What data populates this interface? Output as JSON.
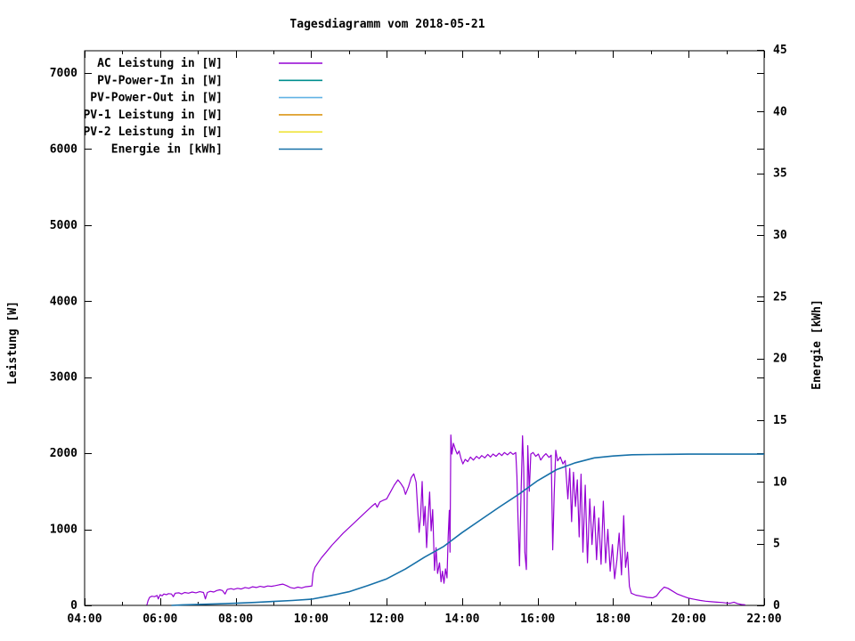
{
  "chart_data": {
    "type": "line",
    "title": "Tagesdiagramm vom 2018-05-21",
    "xlabel": "",
    "ylabel": "Leistung [W]",
    "y2label": "Energie [kWh]",
    "grid": false,
    "legend_position": "top-left-inside",
    "x_axis": {
      "min": 4,
      "max": 22,
      "major_ticks": [
        4,
        6,
        8,
        10,
        12,
        14,
        16,
        18,
        20,
        22
      ],
      "minor_ticks": [
        5,
        7,
        9,
        11,
        13,
        15,
        17,
        19,
        21
      ],
      "major_labels": [
        "04:00",
        "06:00",
        "08:00",
        "10:00",
        "12:00",
        "14:00",
        "16:00",
        "18:00",
        "20:00",
        "22:00"
      ]
    },
    "y_left_axis": {
      "label": "Leistung [W]",
      "min": 0,
      "max": 7300,
      "major_ticks": [
        0,
        1000,
        2000,
        3000,
        4000,
        5000,
        6000,
        7000
      ],
      "major_labels": [
        "0",
        "1000",
        "2000",
        "3000",
        "4000",
        "5000",
        "6000",
        "7000"
      ]
    },
    "y_right_axis": {
      "label": "Energie [kWh]",
      "min": 0,
      "max": 45,
      "major_ticks": [
        0,
        5,
        10,
        15,
        20,
        25,
        30,
        35,
        40,
        45
      ],
      "major_labels": [
        "0",
        "5",
        "10",
        "15",
        "20",
        "25",
        "30",
        "35",
        "40",
        "45"
      ]
    },
    "series": [
      {
        "name": "AC Leistung in [W]",
        "color": "#9400d3",
        "axis": "left",
        "points": [
          [
            5.65,
            5
          ],
          [
            5.68,
            60
          ],
          [
            5.72,
            105
          ],
          [
            5.78,
            120
          ],
          [
            5.85,
            115
          ],
          [
            5.92,
            130
          ],
          [
            5.95,
            85
          ],
          [
            6.0,
            140
          ],
          [
            6.05,
            125
          ],
          [
            6.1,
            150
          ],
          [
            6.17,
            140
          ],
          [
            6.22,
            155
          ],
          [
            6.3,
            150
          ],
          [
            6.35,
            115
          ],
          [
            6.4,
            160
          ],
          [
            6.5,
            165
          ],
          [
            6.57,
            150
          ],
          [
            6.65,
            170
          ],
          [
            6.75,
            160
          ],
          [
            6.85,
            175
          ],
          [
            6.95,
            165
          ],
          [
            7.05,
            180
          ],
          [
            7.15,
            170
          ],
          [
            7.2,
            85
          ],
          [
            7.25,
            170
          ],
          [
            7.33,
            185
          ],
          [
            7.42,
            175
          ],
          [
            7.5,
            195
          ],
          [
            7.58,
            205
          ],
          [
            7.65,
            195
          ],
          [
            7.72,
            150
          ],
          [
            7.78,
            210
          ],
          [
            7.88,
            220
          ],
          [
            7.95,
            210
          ],
          [
            8.05,
            225
          ],
          [
            8.15,
            215
          ],
          [
            8.25,
            235
          ],
          [
            8.35,
            225
          ],
          [
            8.45,
            245
          ],
          [
            8.55,
            235
          ],
          [
            8.65,
            250
          ],
          [
            8.75,
            240
          ],
          [
            8.85,
            255
          ],
          [
            8.95,
            250
          ],
          [
            9.05,
            260
          ],
          [
            9.15,
            270
          ],
          [
            9.25,
            280
          ],
          [
            9.35,
            260
          ],
          [
            9.45,
            235
          ],
          [
            9.55,
            225
          ],
          [
            9.65,
            240
          ],
          [
            9.75,
            230
          ],
          [
            9.85,
            245
          ],
          [
            9.95,
            250
          ],
          [
            10.02,
            255
          ],
          [
            10.05,
            420
          ],
          [
            10.1,
            500
          ],
          [
            10.18,
            560
          ],
          [
            10.28,
            630
          ],
          [
            10.4,
            700
          ],
          [
            10.55,
            790
          ],
          [
            10.7,
            870
          ],
          [
            10.85,
            950
          ],
          [
            11.0,
            1020
          ],
          [
            11.15,
            1090
          ],
          [
            11.3,
            1160
          ],
          [
            11.45,
            1230
          ],
          [
            11.6,
            1300
          ],
          [
            11.7,
            1340
          ],
          [
            11.75,
            1290
          ],
          [
            11.82,
            1360
          ],
          [
            11.9,
            1380
          ],
          [
            12.0,
            1400
          ],
          [
            12.1,
            1490
          ],
          [
            12.2,
            1580
          ],
          [
            12.3,
            1650
          ],
          [
            12.38,
            1600
          ],
          [
            12.45,
            1545
          ],
          [
            12.5,
            1460
          ],
          [
            12.58,
            1560
          ],
          [
            12.65,
            1680
          ],
          [
            12.72,
            1730
          ],
          [
            12.78,
            1620
          ],
          [
            12.82,
            1280
          ],
          [
            12.86,
            960
          ],
          [
            12.9,
            1180
          ],
          [
            12.94,
            1630
          ],
          [
            12.98,
            1050
          ],
          [
            13.02,
            1300
          ],
          [
            13.06,
            760
          ],
          [
            13.1,
            1150
          ],
          [
            13.14,
            1490
          ],
          [
            13.18,
            980
          ],
          [
            13.22,
            1260
          ],
          [
            13.27,
            460
          ],
          [
            13.31,
            760
          ],
          [
            13.35,
            420
          ],
          [
            13.4,
            560
          ],
          [
            13.44,
            310
          ],
          [
            13.48,
            450
          ],
          [
            13.52,
            290
          ],
          [
            13.56,
            480
          ],
          [
            13.6,
            360
          ],
          [
            13.63,
            900
          ],
          [
            13.66,
            1250
          ],
          [
            13.68,
            700
          ],
          [
            13.7,
            2240
          ],
          [
            13.73,
            1990
          ],
          [
            13.77,
            2130
          ],
          [
            13.82,
            2050
          ],
          [
            13.87,
            1990
          ],
          [
            13.92,
            2030
          ],
          [
            13.97,
            1930
          ],
          [
            14.02,
            1860
          ],
          [
            14.08,
            1920
          ],
          [
            14.15,
            1890
          ],
          [
            14.22,
            1950
          ],
          [
            14.3,
            1910
          ],
          [
            14.38,
            1960
          ],
          [
            14.45,
            1930
          ],
          [
            14.52,
            1970
          ],
          [
            14.6,
            1940
          ],
          [
            14.68,
            1985
          ],
          [
            14.75,
            1950
          ],
          [
            14.82,
            1990
          ],
          [
            14.9,
            1960
          ],
          [
            14.98,
            2000
          ],
          [
            15.05,
            1970
          ],
          [
            15.12,
            2010
          ],
          [
            15.2,
            1980
          ],
          [
            15.28,
            2015
          ],
          [
            15.35,
            1985
          ],
          [
            15.42,
            2010
          ],
          [
            15.45,
            1700
          ],
          [
            15.48,
            1150
          ],
          [
            15.52,
            520
          ],
          [
            15.56,
            1450
          ],
          [
            15.6,
            2230
          ],
          [
            15.63,
            1820
          ],
          [
            15.66,
            700
          ],
          [
            15.7,
            470
          ],
          [
            15.74,
            2100
          ],
          [
            15.78,
            1500
          ],
          [
            15.82,
            1990
          ],
          [
            15.88,
            2010
          ],
          [
            15.95,
            1960
          ],
          [
            16.02,
            1990
          ],
          [
            16.08,
            1910
          ],
          [
            16.15,
            1960
          ],
          [
            16.22,
            1995
          ],
          [
            16.3,
            1945
          ],
          [
            16.36,
            1975
          ],
          [
            16.4,
            730
          ],
          [
            16.44,
            1480
          ],
          [
            16.48,
            2040
          ],
          [
            16.53,
            1900
          ],
          [
            16.6,
            1950
          ],
          [
            16.67,
            1860
          ],
          [
            16.73,
            1905
          ],
          [
            16.8,
            1400
          ],
          [
            16.85,
            1800
          ],
          [
            16.9,
            1100
          ],
          [
            16.95,
            1750
          ],
          [
            17.0,
            1300
          ],
          [
            17.05,
            1650
          ],
          [
            17.1,
            900
          ],
          [
            17.15,
            1725
          ],
          [
            17.2,
            700
          ],
          [
            17.26,
            1580
          ],
          [
            17.32,
            560
          ],
          [
            17.38,
            1400
          ],
          [
            17.44,
            800
          ],
          [
            17.5,
            1300
          ],
          [
            17.56,
            600
          ],
          [
            17.62,
            1150
          ],
          [
            17.68,
            540
          ],
          [
            17.74,
            1370
          ],
          [
            17.8,
            560
          ],
          [
            17.86,
            1000
          ],
          [
            17.92,
            450
          ],
          [
            17.98,
            800
          ],
          [
            18.04,
            350
          ],
          [
            18.1,
            600
          ],
          [
            18.16,
            950
          ],
          [
            18.22,
            400
          ],
          [
            18.28,
            1180
          ],
          [
            18.33,
            500
          ],
          [
            18.38,
            700
          ],
          [
            18.43,
            250
          ],
          [
            18.48,
            160
          ],
          [
            18.6,
            135
          ],
          [
            18.75,
            120
          ],
          [
            18.9,
            105
          ],
          [
            19.05,
            100
          ],
          [
            19.15,
            125
          ],
          [
            19.25,
            190
          ],
          [
            19.35,
            240
          ],
          [
            19.45,
            225
          ],
          [
            19.55,
            195
          ],
          [
            19.7,
            150
          ],
          [
            19.85,
            120
          ],
          [
            20.0,
            95
          ],
          [
            20.15,
            80
          ],
          [
            20.3,
            65
          ],
          [
            20.45,
            55
          ],
          [
            20.6,
            48
          ],
          [
            20.75,
            42
          ],
          [
            20.9,
            38
          ],
          [
            21.0,
            32
          ],
          [
            21.1,
            28
          ],
          [
            21.2,
            42
          ],
          [
            21.3,
            22
          ],
          [
            21.4,
            12
          ],
          [
            21.5,
            8
          ]
        ]
      },
      {
        "name": "PV-Power-In in [W]",
        "color": "#008f8f",
        "axis": "left",
        "points": []
      },
      {
        "name": "PV-Power-Out in [W]",
        "color": "#62b2e4",
        "axis": "left",
        "points": []
      },
      {
        "name": "PV-1 Leistung in [W]",
        "color": "#db9718",
        "axis": "left",
        "points": []
      },
      {
        "name": "PV-2 Leistung in [W]",
        "color": "#efe43a",
        "axis": "left",
        "points": []
      },
      {
        "name": "Energie in [kWh]",
        "color": "#1670a8",
        "axis": "right",
        "points": [
          [
            6.3,
            0
          ],
          [
            6.6,
            0.04
          ],
          [
            7.0,
            0.08
          ],
          [
            7.5,
            0.12
          ],
          [
            8.0,
            0.17
          ],
          [
            8.5,
            0.24
          ],
          [
            9.0,
            0.32
          ],
          [
            9.5,
            0.4
          ],
          [
            10.0,
            0.5
          ],
          [
            10.5,
            0.78
          ],
          [
            11.0,
            1.1
          ],
          [
            11.5,
            1.6
          ],
          [
            12.0,
            2.15
          ],
          [
            12.5,
            2.95
          ],
          [
            13.0,
            3.9
          ],
          [
            13.5,
            4.75
          ],
          [
            14.0,
            5.9
          ],
          [
            14.5,
            6.95
          ],
          [
            15.0,
            8.0
          ],
          [
            15.5,
            9.0
          ],
          [
            16.0,
            10.1
          ],
          [
            16.5,
            11.0
          ],
          [
            17.0,
            11.55
          ],
          [
            17.5,
            11.95
          ],
          [
            18.0,
            12.1
          ],
          [
            18.5,
            12.2
          ],
          [
            19.0,
            12.22
          ],
          [
            19.5,
            12.24
          ],
          [
            20.0,
            12.25
          ],
          [
            21.0,
            12.25
          ],
          [
            22.0,
            12.25
          ]
        ]
      }
    ],
    "colors": {
      "foreground": "#000000",
      "background": "#ffffff"
    }
  }
}
